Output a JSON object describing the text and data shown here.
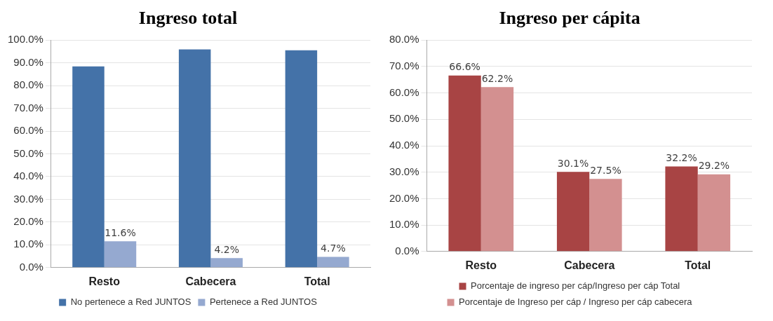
{
  "chart_data": [
    {
      "type": "bar",
      "title": "Ingreso total",
      "categories": [
        "Resto",
        "Cabecera",
        "Total"
      ],
      "series": [
        {
          "name": "No pertenece a Red JUNTOS",
          "color": "#4472a8",
          "values": [
            88.4,
            95.9,
            95.5
          ]
        },
        {
          "name": "Pertenece a Red JUNTOS",
          "color": "#95a9d0",
          "values": [
            11.6,
            4.2,
            4.7
          ],
          "value_labels": [
            "11.6%",
            "4.2%",
            "4.7%"
          ]
        }
      ],
      "ylim": [
        0,
        100
      ],
      "yticks": [
        {
          "value": 0,
          "label": "0.0%"
        },
        {
          "value": 10,
          "label": "10.0%"
        },
        {
          "value": 20,
          "label": "20.0%"
        },
        {
          "value": 30,
          "label": "30.0%"
        },
        {
          "value": 40,
          "label": "40.0%"
        },
        {
          "value": 50,
          "label": "50.0%"
        },
        {
          "value": 60,
          "label": "60.0%"
        },
        {
          "value": 70,
          "label": "70.0%"
        },
        {
          "value": 80,
          "label": "80.0%"
        },
        {
          "value": 90,
          "label": "90.0%"
        },
        {
          "value": 100,
          "label": "100.0%"
        }
      ],
      "grid": "y",
      "legend": "bottom"
    },
    {
      "type": "bar",
      "title": "Ingreso per cápita",
      "categories": [
        "Resto",
        "Cabecera",
        "Total"
      ],
      "series": [
        {
          "name": "Porcentaje de ingreso per cáp/Ingreso per cáp Total",
          "color": "#a84444",
          "values": [
            66.6,
            30.1,
            32.2
          ],
          "value_labels": [
            "66.6%",
            "30.1%",
            "32.2%"
          ]
        },
        {
          "name": "Porcentaje de Ingreso per cáp / Ingreso per cáp cabecera",
          "color": "#d39090",
          "values": [
            62.2,
            27.5,
            29.2
          ],
          "value_labels": [
            "62.2%",
            "27.5%",
            "29.2%"
          ]
        }
      ],
      "ylim": [
        0,
        80
      ],
      "yticks": [
        {
          "value": 0,
          "label": "0.0%"
        },
        {
          "value": 10,
          "label": "10.0%"
        },
        {
          "value": 20,
          "label": "20.0%"
        },
        {
          "value": 30,
          "label": "30.0%"
        },
        {
          "value": 40,
          "label": "40.0%"
        },
        {
          "value": 50,
          "label": "50.0%"
        },
        {
          "value": 60,
          "label": "60.0%"
        },
        {
          "value": 70,
          "label": "70.0%"
        },
        {
          "value": 80,
          "label": "80.0%"
        }
      ],
      "grid": "y",
      "legend": "bottom"
    }
  ]
}
